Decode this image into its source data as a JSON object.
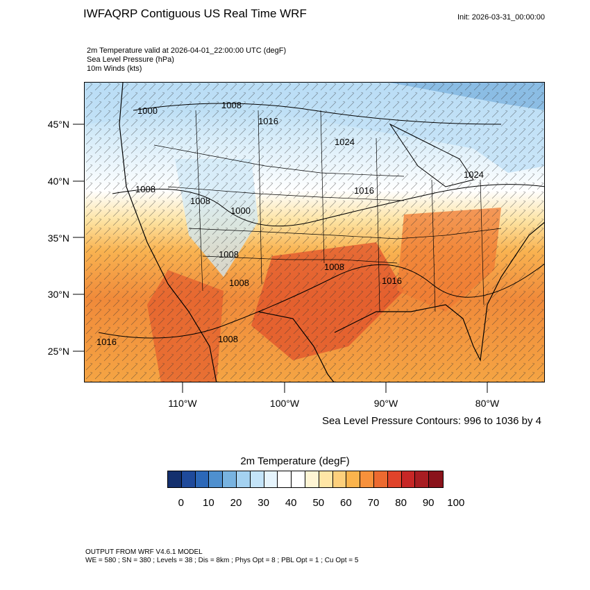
{
  "title": "IWFAQRP Contiguous US Real Time WRF",
  "init": "Init: 2026-03-31_00:00:00",
  "fields": [
    "2m Temperature valid at 2026-04-01_22:00:00 UTC   (degF)",
    "Sea Level Pressure   (hPa)",
    "10m Winds   (kts)"
  ],
  "lat_labels": [
    "45°N",
    "40°N",
    "35°N",
    "30°N",
    "25°N"
  ],
  "lon_labels": [
    "110°W",
    "100°W",
    "90°W",
    "80°W"
  ],
  "contour_note": "Sea Level Pressure Contours: 996 to 1036 by 4",
  "pressure_labels": [
    "1000",
    "1008",
    "1016",
    "1024",
    "1024",
    "1008",
    "1008",
    "1000",
    "1016",
    "1008",
    "1008",
    "1016",
    "1008",
    "1016",
    "1008"
  ],
  "colorbar": {
    "title": "2m Temperature  (degF)",
    "colors": [
      "#14306e",
      "#1f4a9b",
      "#2c68b8",
      "#4f90cf",
      "#78b3e0",
      "#a4d2f1",
      "#c4e4f8",
      "#e6f4fc",
      "#ffffff",
      "#ffffff",
      "#fff5d4",
      "#ffe6a6",
      "#fdd07c",
      "#fbb44d",
      "#f7913b",
      "#ec6a30",
      "#e0432a",
      "#c72726",
      "#a81d22",
      "#8a131b"
    ],
    "ticks": [
      "0",
      "10",
      "20",
      "30",
      "40",
      "50",
      "60",
      "70",
      "80",
      "90",
      "100"
    ]
  },
  "footer": [
    "OUTPUT FROM WRF V4.6.1 MODEL",
    "WE = 580 ; SN = 380 ; Levels = 38 ; Dis = 8km ; Phys Opt = 8 ; PBL Opt = 1 ; Cu Opt = 5"
  ]
}
